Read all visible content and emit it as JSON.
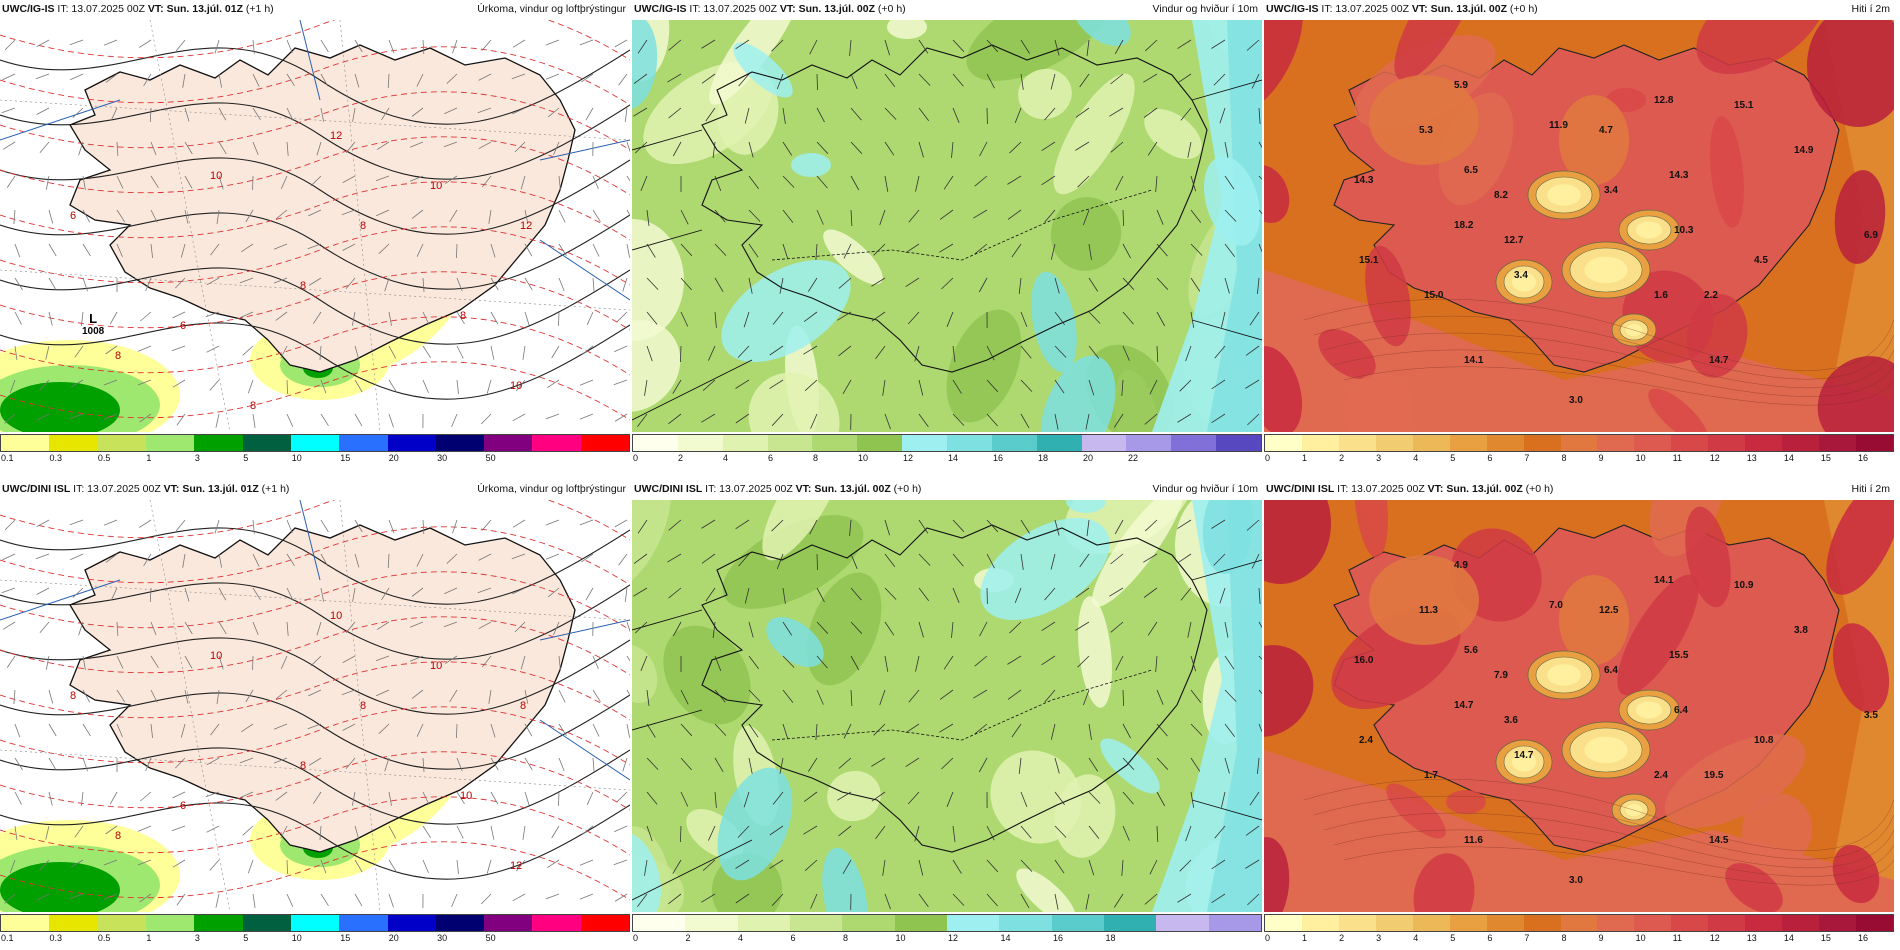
{
  "panels": [
    {
      "key": "p1",
      "model": "UWC/IG-IS",
      "it": " IT: 13.07.2025 00Z",
      "vt": "VT: Sun. 13.júl. 01Z",
      "lead": " (+1 h)",
      "product": "Úrkoma, vindur og loftþrýstingur",
      "kind": "precip",
      "colors": [
        "#ffff99",
        "#e6e600",
        "#c8e25a",
        "#9ee870",
        "#00a000",
        "#006040",
        "#00ffff",
        "#2a70ff",
        "#0000c8",
        "#000070",
        "#800080",
        "#ff0080",
        "#ff0000"
      ],
      "ticks": [
        "0.1",
        "0.3",
        "0.5",
        "1",
        "3",
        "5",
        "10",
        "15",
        "20",
        "30",
        "50"
      ],
      "low": {
        "letter": "L",
        "value": "1008"
      },
      "isobar_labels": [
        "6",
        "8",
        "10",
        "12",
        "8",
        "8",
        "10",
        "8",
        "6",
        "10",
        "12",
        "8"
      ]
    },
    {
      "key": "p2",
      "model": "UWC/IG-IS",
      "it": " IT: 13.07.2025 00Z",
      "vt": "VT: Sun. 13.júl. 00Z",
      "lead": " (+0 h)",
      "product": "Vindur og hviður í 10m",
      "kind": "wind",
      "colors": [
        "#ffffee",
        "#f2fad0",
        "#e0f2b0",
        "#c8e690",
        "#aed870",
        "#8fc450",
        "#9ef0f0",
        "#7ee0e0",
        "#5acccc",
        "#30b0b0",
        "#c8b8f0",
        "#a898e8",
        "#8070d8",
        "#5848c0"
      ],
      "ticks": [
        "0",
        "2",
        "4",
        "6",
        "8",
        "10",
        "12",
        "14",
        "16",
        "18",
        "20",
        "22"
      ]
    },
    {
      "key": "p3",
      "model": "UWC/IG-IS",
      "it": " IT: 13.07.2025 00Z",
      "vt": "VT: Sun. 13.júl. 00Z",
      "lead": " (+0 h)",
      "product": "Hiti í 2m",
      "kind": "temp",
      "colors": [
        "#ffffc8",
        "#fff0a0",
        "#fae08a",
        "#f2cc70",
        "#ecb858",
        "#e8a040",
        "#e08830",
        "#d87020",
        "#e07840",
        "#e06a50",
        "#dc5a50",
        "#d84848",
        "#d03a44",
        "#c82a40",
        "#b8203c",
        "#a8183a",
        "#980c34"
      ],
      "ticks": [
        "0",
        "1",
        "2",
        "3",
        "4",
        "5",
        "6",
        "7",
        "8",
        "9",
        "10",
        "11",
        "12",
        "13",
        "14",
        "15",
        "16"
      ],
      "values": [
        "5.9",
        "5.3",
        "14.3",
        "6.5",
        "11.9",
        "4.7",
        "12.8",
        "15.1",
        "14.9",
        "14.3",
        "8.2",
        "3.4",
        "10.3",
        "18.2",
        "12.7",
        "6.9",
        "15.1",
        "3.4",
        "4.5",
        "15.0",
        "1.6",
        "2.2",
        "14.1",
        "14.7",
        "3.0"
      ]
    },
    {
      "key": "p4",
      "model": "UWC/DINI ISL",
      "it": " IT: 13.07.2025 00Z",
      "vt": "VT: Sun. 13.júl. 01Z",
      "lead": " (+1 h)",
      "product": "Úrkoma, vindur og loftþrýstingur",
      "kind": "precip",
      "colors": [
        "#ffff99",
        "#e6e600",
        "#c8e25a",
        "#9ee870",
        "#00a000",
        "#006040",
        "#00ffff",
        "#2a70ff",
        "#0000c8",
        "#000070",
        "#800080",
        "#ff0080",
        "#ff0000"
      ],
      "ticks": [
        "0.1",
        "0.3",
        "0.5",
        "1",
        "3",
        "5",
        "10",
        "15",
        "20",
        "30",
        "50"
      ],
      "isobar_labels": [
        "8",
        "8",
        "10",
        "10",
        "8",
        "8",
        "10",
        "10",
        "6",
        "12",
        "8"
      ]
    },
    {
      "key": "p5",
      "model": "UWC/DINI ISL",
      "it": " IT: 13.07.2025 00Z",
      "vt": "VT: Sun. 13.júl. 00Z",
      "lead": " (+0 h)",
      "product": "Vindur og hviður í 10m",
      "kind": "wind",
      "colors": [
        "#ffffee",
        "#f2fad0",
        "#e0f2b0",
        "#c8e690",
        "#aed870",
        "#8fc450",
        "#9ef0f0",
        "#7ee0e0",
        "#5acccc",
        "#30b0b0",
        "#c8b8f0",
        "#a898e8"
      ],
      "ticks": [
        "0",
        "2",
        "4",
        "6",
        "8",
        "10",
        "12",
        "14",
        "16",
        "18"
      ]
    },
    {
      "key": "p6",
      "model": "UWC/DINI ISL",
      "it": " IT: 13.07.2025 00Z",
      "vt": "VT: Sun. 13.júl. 00Z",
      "lead": " (+0 h)",
      "product": "Hiti í 2m",
      "kind": "temp",
      "colors": [
        "#ffffc8",
        "#fff0a0",
        "#fae08a",
        "#f2cc70",
        "#ecb858",
        "#e8a040",
        "#e08830",
        "#d87020",
        "#e07840",
        "#e06a50",
        "#dc5a50",
        "#d84848",
        "#d03a44",
        "#c82a40",
        "#b8203c",
        "#a8183a",
        "#980c34"
      ],
      "ticks": [
        "0",
        "1",
        "2",
        "3",
        "4",
        "5",
        "6",
        "7",
        "8",
        "9",
        "10",
        "11",
        "12",
        "13",
        "14",
        "15",
        "16"
      ],
      "values": [
        "4.9",
        "11.3",
        "16.0",
        "5.6",
        "7.0",
        "12.5",
        "14.1",
        "10.9",
        "3.8",
        "15.5",
        "7.9",
        "6.4",
        "6.4",
        "14.7",
        "3.6",
        "3.5",
        "2.4",
        "14.7",
        "10.8",
        "1.7",
        "2.4",
        "19.5",
        "11.6",
        "14.5",
        "3.0"
      ]
    }
  ]
}
